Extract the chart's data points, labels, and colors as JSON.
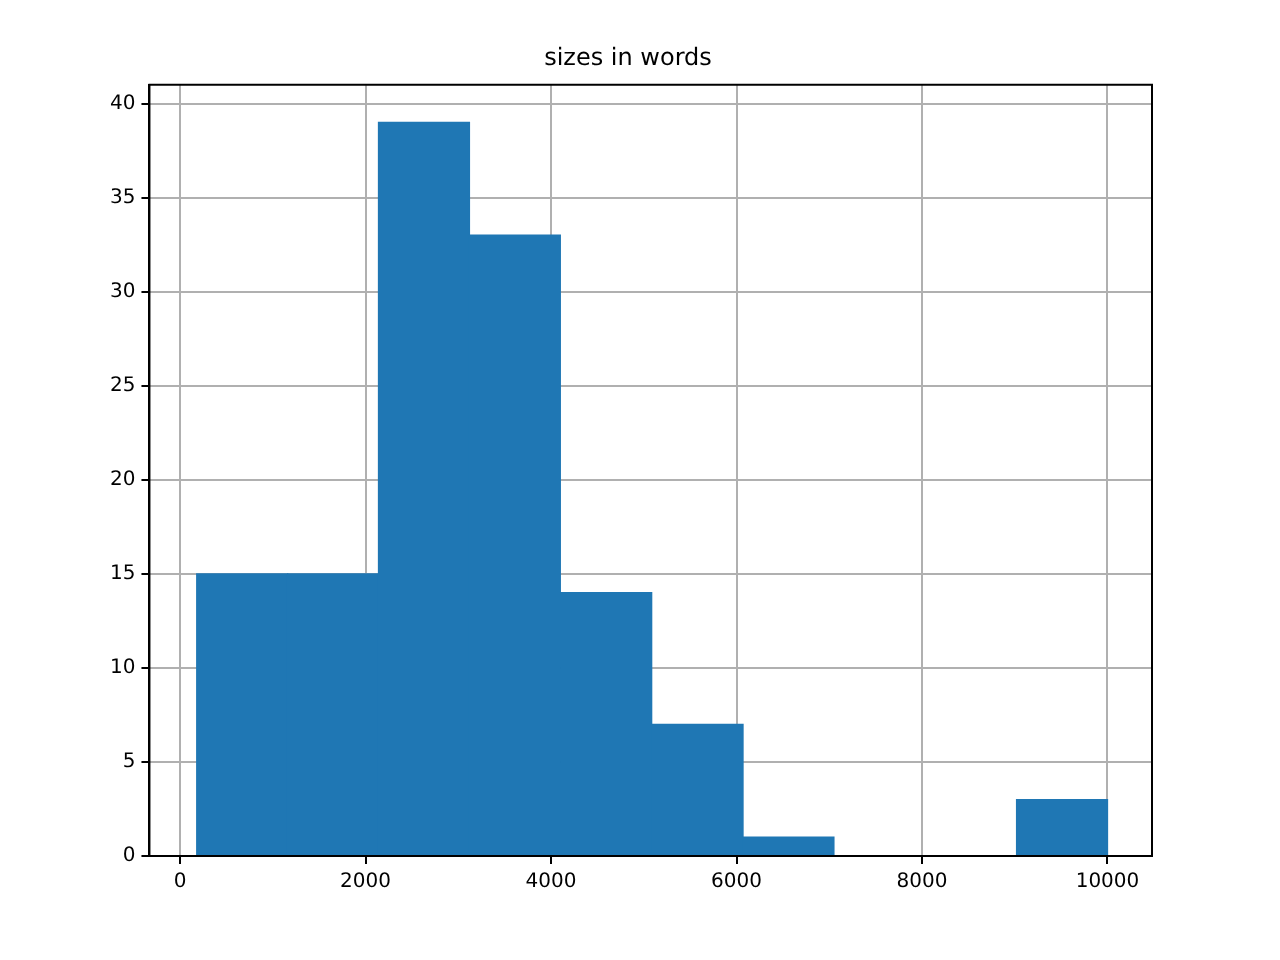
{
  "chart_data": {
    "type": "histogram",
    "title": "sizes in words",
    "bins": [
      180,
      1160,
      2140,
      3120,
      4100,
      5090,
      6070,
      7050,
      8040,
      9020,
      10000
    ],
    "values": [
      15,
      15,
      39,
      33,
      14,
      7,
      1,
      0,
      0,
      3
    ],
    "color": "#1f77b4",
    "xlim": [
      -330,
      10480
    ],
    "xticks": [
      0,
      2000,
      4000,
      6000,
      8000,
      10000
    ],
    "ylim": [
      0,
      41
    ],
    "yticks": [
      0,
      5,
      10,
      15,
      20,
      25,
      30,
      35,
      40
    ],
    "grid": true
  }
}
